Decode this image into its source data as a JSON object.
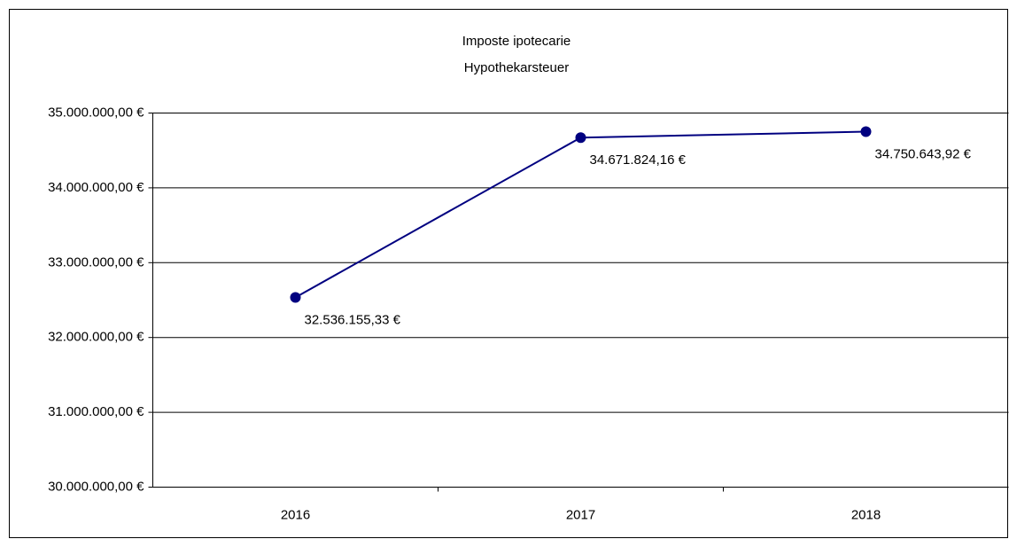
{
  "chart_data": {
    "type": "line",
    "title": "Imposte ipotecarie",
    "subtitle": "Hypothekarsteuer",
    "categories": [
      "2016",
      "2017",
      "2018"
    ],
    "series": [
      {
        "color": "#000080",
        "values": [
          32536155.33,
          34671824.16,
          34750643.92
        ],
        "value_labels": [
          "32.536.155,33 €",
          "34.671.824,16 €",
          "34.750.643,92 €"
        ]
      }
    ],
    "ylim": [
      30000000,
      35000000
    ],
    "yticks": [
      {
        "value": 30000000,
        "label": "30.000.000,00 €"
      },
      {
        "value": 31000000,
        "label": "31.000.000,00 €"
      },
      {
        "value": 32000000,
        "label": "32.000.000,00 €"
      },
      {
        "value": 33000000,
        "label": "33.000.000,00 €"
      },
      {
        "value": 34000000,
        "label": "34.000.000,00 €"
      },
      {
        "value": 35000000,
        "label": "35.000.000,00 €"
      }
    ],
    "grid": true
  }
}
